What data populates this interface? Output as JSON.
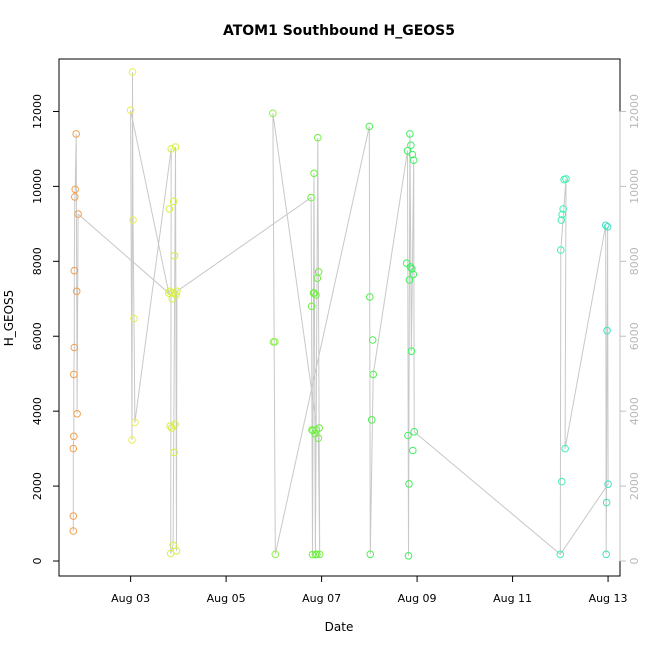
{
  "chart_data": {
    "type": "scatter",
    "title": "ATOM1 Southbound H_GEOS5",
    "xlabel": "Date",
    "ylabel": "H_GEOS5",
    "x_unit": "days since Aug 1",
    "xlim": [
      1.5,
      13.25
    ],
    "ylim": [
      -400,
      13400
    ],
    "x_tick_labels": [
      "Aug 03",
      "Aug 05",
      "Aug 07",
      "Aug 09",
      "Aug 11",
      "Aug 13"
    ],
    "x_tick_values": [
      3,
      5,
      7,
      9,
      11,
      13
    ],
    "y_ticks": [
      0,
      2000,
      4000,
      6000,
      8000,
      10000,
      12000
    ],
    "y_tick_labels": [
      "0",
      "2000",
      "4000",
      "6000",
      "8000",
      "10000",
      "12000"
    ],
    "right_axis_color": "#c0c0c0",
    "line_color": "#c8c8c8",
    "grid": false,
    "points": [
      {
        "x": 1.8,
        "y": 800,
        "color": "#f0a050"
      },
      {
        "x": 1.8,
        "y": 1200,
        "color": "#f0a050"
      },
      {
        "x": 1.8,
        "y": 3000,
        "color": "#f0a050"
      },
      {
        "x": 1.81,
        "y": 3330,
        "color": "#f0a050"
      },
      {
        "x": 1.81,
        "y": 4980,
        "color": "#f0a050"
      },
      {
        "x": 1.82,
        "y": 5700,
        "color": "#f0a050"
      },
      {
        "x": 1.82,
        "y": 7750,
        "color": "#f0a050"
      },
      {
        "x": 1.83,
        "y": 9720,
        "color": "#f0a050"
      },
      {
        "x": 1.84,
        "y": 9920,
        "color": "#f0a050"
      },
      {
        "x": 1.86,
        "y": 11400,
        "color": "#f0a050"
      },
      {
        "x": 1.87,
        "y": 7200,
        "color": "#f0a050"
      },
      {
        "x": 1.88,
        "y": 3930,
        "color": "#f0a050"
      },
      {
        "x": 1.9,
        "y": 9260,
        "color": "#f0a050"
      },
      {
        "x": 3.0,
        "y": 12030,
        "color": "#e8f050"
      },
      {
        "x": 3.03,
        "y": 3230,
        "color": "#e8f050"
      },
      {
        "x": 3.04,
        "y": 13050,
        "color": "#e8f050"
      },
      {
        "x": 3.05,
        "y": 9100,
        "color": "#e8f050"
      },
      {
        "x": 3.07,
        "y": 6470,
        "color": "#e8f050"
      },
      {
        "x": 3.09,
        "y": 3700,
        "color": "#e8f050"
      },
      {
        "x": 3.8,
        "y": 7150,
        "color": "#d8f040"
      },
      {
        "x": 3.81,
        "y": 9400,
        "color": "#d8f040"
      },
      {
        "x": 3.82,
        "y": 7200,
        "color": "#d8f040"
      },
      {
        "x": 3.83,
        "y": 3600,
        "color": "#d8f040"
      },
      {
        "x": 3.84,
        "y": 200,
        "color": "#d8f040"
      },
      {
        "x": 3.85,
        "y": 11000,
        "color": "#d8f040"
      },
      {
        "x": 3.86,
        "y": 3550,
        "color": "#d8f040"
      },
      {
        "x": 3.87,
        "y": 7000,
        "color": "#d8f040"
      },
      {
        "x": 3.88,
        "y": 7150,
        "color": "#d8f040"
      },
      {
        "x": 3.89,
        "y": 420,
        "color": "#d8f040"
      },
      {
        "x": 3.9,
        "y": 9600,
        "color": "#d8f040"
      },
      {
        "x": 3.91,
        "y": 2900,
        "color": "#d8f040"
      },
      {
        "x": 3.92,
        "y": 8150,
        "color": "#d8f040"
      },
      {
        "x": 3.93,
        "y": 3650,
        "color": "#d8f040"
      },
      {
        "x": 3.94,
        "y": 11050,
        "color": "#d8f040"
      },
      {
        "x": 3.95,
        "y": 7100,
        "color": "#d8f040"
      },
      {
        "x": 3.96,
        "y": 270,
        "color": "#d8f040"
      },
      {
        "x": 3.97,
        "y": 7200,
        "color": "#d8f040"
      },
      {
        "x": 5.98,
        "y": 11950,
        "color": "#90f050"
      },
      {
        "x": 5.99,
        "y": 5850,
        "color": "#90f050"
      },
      {
        "x": 6.02,
        "y": 5850,
        "color": "#90f050"
      },
      {
        "x": 6.03,
        "y": 180,
        "color": "#90f050"
      },
      {
        "x": 6.78,
        "y": 9700,
        "color": "#70f040"
      },
      {
        "x": 6.79,
        "y": 6800,
        "color": "#70f040"
      },
      {
        "x": 6.8,
        "y": 3500,
        "color": "#70f040"
      },
      {
        "x": 6.81,
        "y": 170,
        "color": "#70f040"
      },
      {
        "x": 6.82,
        "y": 3480,
        "color": "#70f040"
      },
      {
        "x": 6.83,
        "y": 7150,
        "color": "#70f040"
      },
      {
        "x": 6.84,
        "y": 10350,
        "color": "#70f040"
      },
      {
        "x": 6.85,
        "y": 7150,
        "color": "#70f040"
      },
      {
        "x": 6.86,
        "y": 3400,
        "color": "#70f040"
      },
      {
        "x": 6.87,
        "y": 170,
        "color": "#70f040"
      },
      {
        "x": 6.88,
        "y": 7100,
        "color": "#70f040"
      },
      {
        "x": 6.89,
        "y": 3500,
        "color": "#70f040"
      },
      {
        "x": 6.9,
        "y": 180,
        "color": "#70f040"
      },
      {
        "x": 6.91,
        "y": 7550,
        "color": "#70f040"
      },
      {
        "x": 6.92,
        "y": 11300,
        "color": "#70f040"
      },
      {
        "x": 6.93,
        "y": 3280,
        "color": "#70f040"
      },
      {
        "x": 6.94,
        "y": 7720,
        "color": "#70f040"
      },
      {
        "x": 6.95,
        "y": 3550,
        "color": "#70f040"
      },
      {
        "x": 6.96,
        "y": 180,
        "color": "#70f040"
      },
      {
        "x": 8.0,
        "y": 11600,
        "color": "#50f050"
      },
      {
        "x": 8.01,
        "y": 7050,
        "color": "#50f050"
      },
      {
        "x": 8.02,
        "y": 180,
        "color": "#50f050"
      },
      {
        "x": 8.05,
        "y": 3770,
        "color": "#50f050"
      },
      {
        "x": 8.07,
        "y": 5900,
        "color": "#50f050"
      },
      {
        "x": 8.08,
        "y": 4980,
        "color": "#50f050"
      },
      {
        "x": 8.78,
        "y": 7950,
        "color": "#40f060"
      },
      {
        "x": 8.8,
        "y": 10950,
        "color": "#40f060"
      },
      {
        "x": 8.81,
        "y": 3350,
        "color": "#40f060"
      },
      {
        "x": 8.82,
        "y": 140,
        "color": "#40f060"
      },
      {
        "x": 8.83,
        "y": 2060,
        "color": "#40f060"
      },
      {
        "x": 8.84,
        "y": 7500,
        "color": "#40f060"
      },
      {
        "x": 8.85,
        "y": 11400,
        "color": "#40f060"
      },
      {
        "x": 8.86,
        "y": 7850,
        "color": "#40f060"
      },
      {
        "x": 8.87,
        "y": 11100,
        "color": "#40f060"
      },
      {
        "x": 8.88,
        "y": 5600,
        "color": "#40f060"
      },
      {
        "x": 8.89,
        "y": 7800,
        "color": "#40f060"
      },
      {
        "x": 8.9,
        "y": 10850,
        "color": "#40f060"
      },
      {
        "x": 8.91,
        "y": 2950,
        "color": "#40f060"
      },
      {
        "x": 8.92,
        "y": 7650,
        "color": "#40f060"
      },
      {
        "x": 8.93,
        "y": 10700,
        "color": "#40f060"
      },
      {
        "x": 8.94,
        "y": 3450,
        "color": "#40f060"
      },
      {
        "x": 12.0,
        "y": 180,
        "color": "#40f0b0"
      },
      {
        "x": 12.01,
        "y": 8300,
        "color": "#40f0b0"
      },
      {
        "x": 12.02,
        "y": 9100,
        "color": "#40f0b0"
      },
      {
        "x": 12.03,
        "y": 2120,
        "color": "#40f0b0"
      },
      {
        "x": 12.04,
        "y": 9250,
        "color": "#40f0b0"
      },
      {
        "x": 12.06,
        "y": 9400,
        "color": "#40f0b0"
      },
      {
        "x": 12.08,
        "y": 10180,
        "color": "#40f0b0"
      },
      {
        "x": 12.1,
        "y": 3000,
        "color": "#40f0b0"
      },
      {
        "x": 12.12,
        "y": 10200,
        "color": "#40f0b0"
      },
      {
        "x": 12.95,
        "y": 8960,
        "color": "#40e0c0"
      },
      {
        "x": 12.96,
        "y": 180,
        "color": "#40e0c0"
      },
      {
        "x": 12.97,
        "y": 1560,
        "color": "#40e0c0"
      },
      {
        "x": 12.98,
        "y": 6150,
        "color": "#40e0c0"
      },
      {
        "x": 12.99,
        "y": 8920,
        "color": "#40e0c0"
      },
      {
        "x": 13.0,
        "y": 2050,
        "color": "#40e0c0"
      }
    ],
    "connector_path": [
      [
        1.8,
        800
      ],
      [
        1.8,
        1200
      ],
      [
        1.8,
        3000
      ],
      [
        1.81,
        3330
      ],
      [
        1.81,
        4980
      ],
      [
        1.82,
        5700
      ],
      [
        1.82,
        7750
      ],
      [
        1.83,
        9720
      ],
      [
        1.84,
        9920
      ],
      [
        1.86,
        11400
      ],
      [
        1.87,
        7200
      ],
      [
        1.88,
        3930
      ],
      [
        1.9,
        9260
      ],
      [
        3.8,
        7150
      ],
      [
        3.0,
        12030
      ],
      [
        3.03,
        3230
      ],
      [
        3.04,
        13050
      ],
      [
        3.05,
        9100
      ],
      [
        3.07,
        6470
      ],
      [
        3.09,
        3700
      ],
      [
        3.85,
        11000
      ],
      [
        3.84,
        200
      ],
      [
        3.89,
        420
      ],
      [
        3.94,
        11050
      ],
      [
        3.96,
        270
      ],
      [
        3.97,
        7200
      ],
      [
        6.78,
        9700
      ],
      [
        6.81,
        170
      ],
      [
        6.84,
        10350
      ],
      [
        6.87,
        170
      ],
      [
        6.92,
        11300
      ],
      [
        6.96,
        180
      ],
      [
        6.93,
        3280
      ],
      [
        5.98,
        11950
      ],
      [
        6.03,
        180
      ],
      [
        8.0,
        11600
      ],
      [
        8.02,
        180
      ],
      [
        8.08,
        4980
      ],
      [
        8.8,
        10950
      ],
      [
        8.82,
        140
      ],
      [
        8.85,
        11400
      ],
      [
        8.88,
        5600
      ],
      [
        8.93,
        10700
      ],
      [
        8.94,
        3450
      ],
      [
        12.0,
        180
      ],
      [
        12.01,
        8300
      ],
      [
        12.12,
        10200
      ],
      [
        12.1,
        3000
      ],
      [
        12.95,
        8960
      ],
      [
        12.96,
        180
      ],
      [
        12.99,
        8920
      ],
      [
        13.0,
        2050
      ],
      [
        12.0,
        180
      ]
    ]
  }
}
